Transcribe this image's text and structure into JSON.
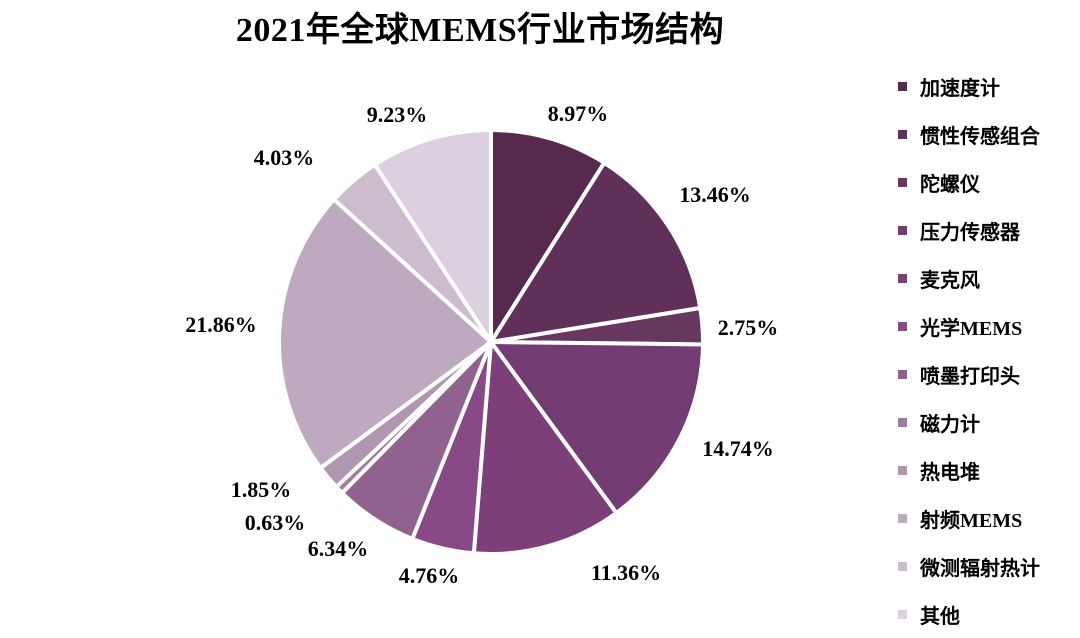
{
  "chart_data": {
    "type": "pie",
    "title": "2021年全球MEMS行业市场结构",
    "legend_position": "right",
    "categories": [
      "加速度计",
      "惯性传感组合",
      "陀螺仪",
      "压力传感器",
      "麦克风",
      "光学MEMS",
      "喷墨打印头",
      "磁力计",
      "热电堆",
      "射频MEMS",
      "微测辐射热计",
      "其他"
    ],
    "values": [
      8.97,
      13.46,
      2.75,
      14.74,
      11.36,
      4.76,
      6.34,
      0.63,
      1.85,
      21.86,
      4.03,
      9.23
    ],
    "labels": [
      "8.97%",
      "13.46%",
      "2.75%",
      "14.74%",
      "11.36%",
      "4.76%",
      "6.34%",
      "0.63%",
      "1.85%",
      "21.86%",
      "4.03%",
      "9.23%"
    ],
    "colors": [
      "#57294f",
      "#60305a",
      "#68375f",
      "#733c72",
      "#7c3f7a",
      "#884a87",
      "#91618f",
      "#a27a9f",
      "#b196b1",
      "#bfa9c0",
      "#ccbcce",
      "#dccfdf"
    ]
  }
}
